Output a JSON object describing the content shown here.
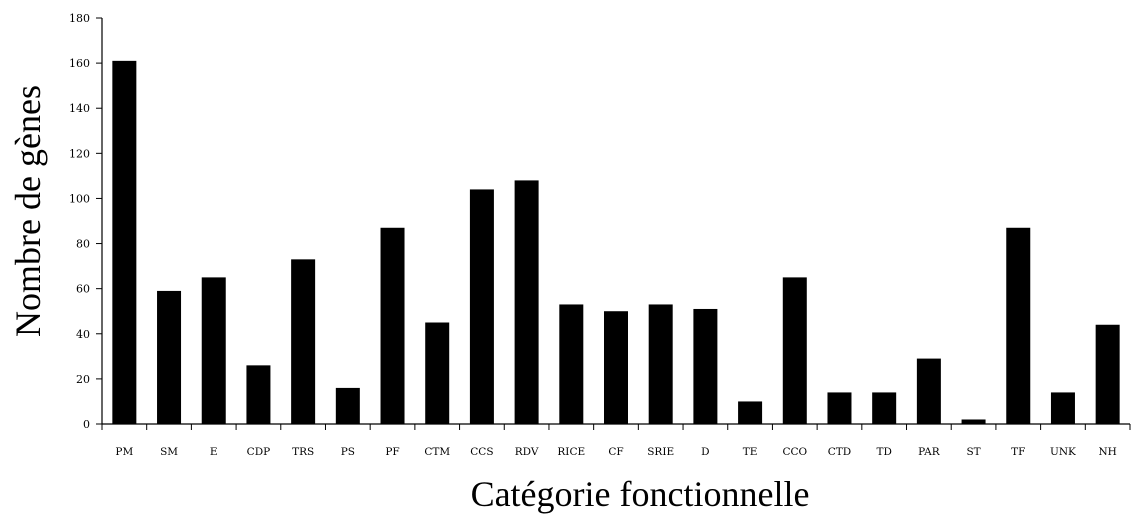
{
  "chart_data": {
    "type": "bar",
    "title": "",
    "xlabel": "Catégorie fonctionnelle",
    "ylabel": "Nombre de gènes",
    "ylim": [
      0,
      180
    ],
    "yticks": [
      0,
      20,
      40,
      60,
      80,
      100,
      120,
      140,
      160,
      180
    ],
    "grid": false,
    "legend": "none",
    "bar_color": "#000000",
    "categories": [
      "PM",
      "SM",
      "E",
      "CDP",
      "TRS",
      "PS",
      "PF",
      "CTM",
      "CCS",
      "RDV",
      "RICE",
      "CF",
      "SRIE",
      "D",
      "TE",
      "CCO",
      "CTD",
      "TD",
      "PAR",
      "ST",
      "TF",
      "UNK",
      "NH"
    ],
    "values": [
      161,
      59,
      65,
      26,
      73,
      16,
      87,
      45,
      104,
      108,
      53,
      50,
      53,
      51,
      10,
      65,
      14,
      14,
      29,
      2,
      87,
      14,
      44
    ]
  }
}
